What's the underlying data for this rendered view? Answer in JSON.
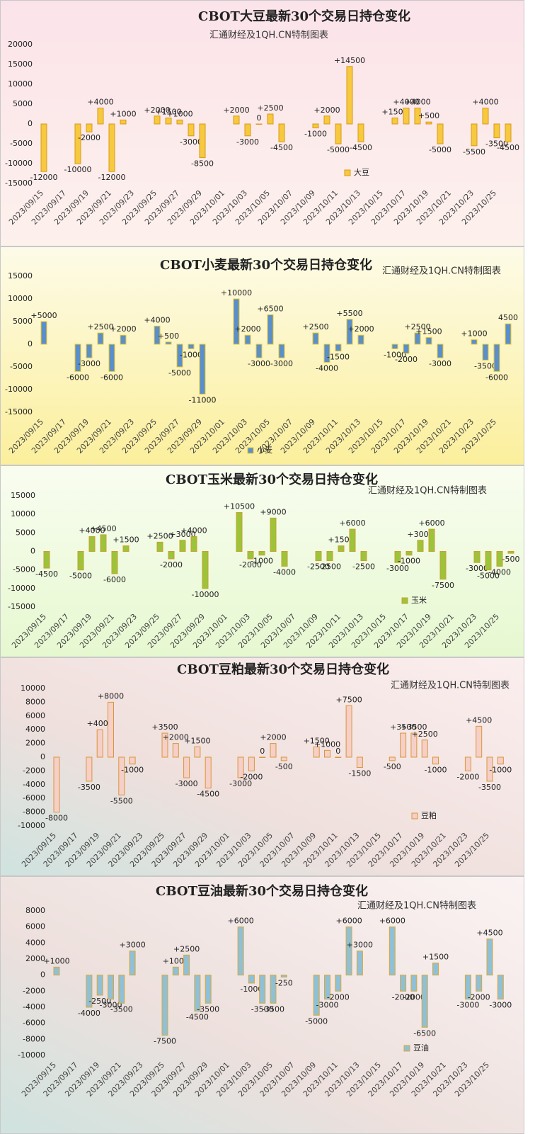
{
  "chart_data": [
    {
      "type": "bar",
      "title": "CBOT大豆最新30个交易日持仓变化",
      "subtitle": "汇通财经及1QH.CN特制图表",
      "categories": [
        "2023/09/15",
        null,
        "2023/09/17",
        null,
        "2023/09/19",
        null,
        "2023/09/21",
        null,
        "2023/09/23",
        null,
        "2023/09/25",
        null,
        "2023/09/27",
        null,
        "2023/09/29",
        null,
        "2023/10/01",
        null,
        "2023/10/03",
        null,
        "2023/10/05",
        null,
        "2023/10/07",
        null,
        "2023/10/09",
        null,
        "2023/10/11",
        null,
        "2023/10/13",
        null,
        "2023/10/15",
        null,
        "2023/10/17",
        null,
        "2023/10/19",
        null,
        "2023/10/21",
        null,
        "2023/10/23",
        null,
        "2023/10/25",
        null
      ],
      "series": [
        {
          "name": "大豆",
          "color": "#f6c93e",
          "edge_color": "#d99a1a",
          "values": [
            -12000,
            null,
            null,
            -10000,
            -2000,
            4000,
            -12000,
            1000,
            null,
            null,
            2000,
            1500,
            1000,
            -3000,
            -8500,
            null,
            null,
            2000,
            -3000,
            0,
            2500,
            -4500,
            null,
            null,
            -1000,
            2000,
            -5000,
            14500,
            -4500,
            null,
            null,
            1500,
            4000,
            4000,
            500,
            -5000,
            null,
            null,
            -5500,
            4000,
            -3500,
            -4500
          ],
          "value_labels": [
            "-12000",
            null,
            null,
            "-10000",
            "-2000",
            "+4000",
            "-12000",
            "+1000",
            null,
            null,
            "+2000",
            "+1500",
            "+1000",
            "-3000",
            "-8500",
            null,
            null,
            "+2000",
            "-3000",
            "0",
            "+2500",
            "-4500",
            null,
            null,
            "-1000",
            "+2000",
            "-5000",
            "+14500",
            "-4500",
            null,
            null,
            "+1500",
            "+4000",
            "+4000",
            "+500",
            "-5000",
            null,
            null,
            "-5500",
            "+4000",
            "-3500",
            "-4500"
          ]
        }
      ],
      "ylim": [
        -15000,
        20000
      ],
      "yticks": [
        -15000,
        -10000,
        -5000,
        0,
        5000,
        10000,
        15000,
        20000
      ],
      "grid": false
    },
    {
      "type": "bar",
      "title": "CBOT小麦最新30个交易日持仓变化",
      "subtitle": "汇通财经及1QH.CN特制图表",
      "categories": [
        "2023/09/15",
        null,
        "2023/09/17",
        null,
        "2023/09/19",
        null,
        "2023/09/21",
        null,
        "2023/09/23",
        null,
        "2023/09/25",
        null,
        "2023/09/27",
        null,
        "2023/09/29",
        null,
        "2023/10/01",
        null,
        "2023/10/03",
        null,
        "2023/10/05",
        null,
        "2023/10/07",
        null,
        "2023/10/09",
        null,
        "2023/10/11",
        null,
        "2023/10/13",
        null,
        "2023/10/15",
        null,
        "2023/10/17",
        null,
        "2023/10/19",
        null,
        "2023/10/21",
        null,
        "2023/10/23",
        null,
        "2023/10/25",
        null
      ],
      "series": [
        {
          "name": "小麦",
          "color": "#5b8fc9",
          "edge_color": "#e8c832",
          "values": [
            5000,
            null,
            null,
            -6000,
            -3000,
            2500,
            -6000,
            2000,
            null,
            null,
            4000,
            500,
            -5000,
            -1000,
            -11000,
            null,
            null,
            10000,
            2000,
            -3000,
            6500,
            -3000,
            null,
            null,
            2500,
            -4000,
            -1500,
            5500,
            2000,
            null,
            null,
            -1000,
            -2000,
            2500,
            1500,
            -3000,
            null,
            null,
            1000,
            -3500,
            -6000,
            4500
          ],
          "value_labels": [
            "+5000",
            null,
            null,
            "-6000",
            "-3000",
            "+2500",
            "-6000",
            "+2000",
            null,
            null,
            "+4000",
            "+500",
            "-5000",
            "-1000",
            "-11000",
            null,
            null,
            "+10000",
            "+2000",
            "-3000",
            "+6500",
            "-3000",
            null,
            null,
            "+2500",
            "-4000",
            "-1500",
            "+5500",
            "+2000",
            null,
            null,
            "-1000",
            "-2000",
            "+2500",
            "+1500",
            "-3000",
            null,
            null,
            "+1000",
            "-3500",
            "-6000",
            "4500"
          ]
        }
      ],
      "ylim": [
        -15000,
        15000
      ],
      "yticks": [
        -15000,
        -10000,
        -5000,
        0,
        5000,
        10000,
        15000
      ],
      "grid": false
    },
    {
      "type": "bar",
      "title": "CBOT玉米最新30个交易日持仓变化",
      "subtitle": "汇通财经及1QH.CN特制图表",
      "categories": [
        "2023/09/15",
        null,
        "2023/09/17",
        null,
        "2023/09/19",
        null,
        "2023/09/21",
        null,
        "2023/09/23",
        null,
        "2023/09/25",
        null,
        "2023/09/27",
        null,
        "2023/09/29",
        null,
        "2023/10/01",
        null,
        "2023/10/03",
        null,
        "2023/10/05",
        null,
        "2023/10/07",
        null,
        "2023/10/09",
        null,
        "2023/10/11",
        null,
        "2023/10/13",
        null,
        "2023/10/15",
        null,
        "2023/10/17",
        null,
        "2023/10/19",
        null,
        "2023/10/21",
        null,
        "2023/10/23",
        null,
        "2023/10/25",
        null
      ],
      "series": [
        {
          "name": "玉米",
          "color": "#9cc43a",
          "edge_color": "#c9a030",
          "values": [
            -4500,
            null,
            null,
            -5000,
            4000,
            4500,
            -6000,
            1500,
            null,
            null,
            2500,
            -2000,
            3000,
            4000,
            -10000,
            null,
            null,
            10500,
            -2000,
            -1000,
            9000,
            -4000,
            null,
            null,
            -2500,
            -2500,
            1500,
            6000,
            -2500,
            null,
            null,
            -3000,
            -1000,
            3000,
            6000,
            -7500,
            null,
            null,
            -3000,
            -5000,
            -4000,
            -500
          ],
          "value_labels": [
            "-4500",
            null,
            null,
            "-5000",
            "+4000",
            "+4500",
            "-6000",
            "+1500",
            null,
            null,
            "+2500",
            "-2000",
            "+3000",
            "+4000",
            "-10000",
            null,
            null,
            "+10500",
            "-2000",
            "-1000",
            "+9000",
            "-4000",
            null,
            null,
            "-2500",
            "-2500",
            "+1500",
            "+6000",
            "-2500",
            null,
            null,
            "-3000",
            "-1000",
            "+3000",
            "+6000",
            "-7500",
            null,
            null,
            "-3000",
            "-5000",
            "-4000",
            "-500"
          ]
        }
      ],
      "ylim": [
        -15000,
        15000
      ],
      "yticks": [
        -15000,
        -10000,
        -5000,
        0,
        5000,
        10000,
        15000
      ],
      "grid": false
    },
    {
      "type": "bar",
      "title": "CBOT豆粕最新30个交易日持仓变化",
      "subtitle": "汇通财经及1QH.CN特制图表",
      "categories": [
        "2023/09/15",
        null,
        "2023/09/17",
        null,
        "2023/09/19",
        null,
        "2023/09/21",
        null,
        "2023/09/23",
        null,
        "2023/09/25",
        null,
        "2023/09/27",
        null,
        "2023/09/29",
        null,
        "2023/10/01",
        null,
        "2023/10/03",
        null,
        "2023/10/05",
        null,
        "2023/10/07",
        null,
        "2023/10/09",
        null,
        "2023/10/11",
        null,
        "2023/10/13",
        null,
        "2023/10/15",
        null,
        "2023/10/17",
        null,
        "2023/10/19",
        null,
        "2023/10/21",
        null,
        "2023/10/23",
        null,
        "2023/10/25",
        null
      ],
      "series": [
        {
          "name": "豆粕",
          "color": "#f6cfc8",
          "edge_color": "#d9963a",
          "values": [
            -8000,
            null,
            null,
            -3500,
            4000,
            8000,
            -5500,
            -1000,
            null,
            null,
            3500,
            2000,
            -3000,
            1500,
            -4500,
            null,
            null,
            -3000,
            -2000,
            0,
            2000,
            -500,
            null,
            null,
            1500,
            1000,
            0,
            7500,
            -1500,
            null,
            null,
            -500,
            3500,
            3500,
            2500,
            -1000,
            null,
            null,
            -2000,
            4500,
            -3500,
            -1000
          ],
          "value_labels": [
            "-8000",
            null,
            null,
            "-3500",
            "+4000",
            "+8000",
            "-5500",
            "-1000",
            null,
            null,
            "+3500",
            "+2000",
            "-3000",
            "+1500",
            "-4500",
            null,
            null,
            "-3000",
            "-2000",
            "0",
            "+2000",
            "-500",
            null,
            null,
            "+1500",
            "+1000",
            "0",
            "+7500",
            "-1500",
            null,
            null,
            "-500",
            "+3500",
            "+3500",
            "+2500",
            "-1000",
            null,
            null,
            "-2000",
            "+4500",
            "-3500",
            "-1000"
          ]
        }
      ],
      "ylim": [
        -10000,
        10000
      ],
      "yticks": [
        -10000,
        -8000,
        -6000,
        -4000,
        -2000,
        0,
        2000,
        4000,
        6000,
        8000,
        10000
      ],
      "grid": false
    },
    {
      "type": "bar",
      "title": "CBOT豆油最新30个交易日持仓变化",
      "subtitle": "汇通财经及1QH.CN特制图表",
      "categories": [
        "2023/09/15",
        null,
        "2023/09/17",
        null,
        "2023/09/19",
        null,
        "2023/09/21",
        null,
        "2023/09/23",
        null,
        "2023/09/25",
        null,
        "2023/09/27",
        null,
        "2023/09/29",
        null,
        "2023/10/01",
        null,
        "2023/10/03",
        null,
        "2023/10/05",
        null,
        "2023/10/07",
        null,
        "2023/10/09",
        null,
        "2023/10/11",
        null,
        "2023/10/13",
        null,
        "2023/10/15",
        null,
        "2023/10/17",
        null,
        "2023/10/19",
        null,
        "2023/10/21",
        null,
        "2023/10/23",
        null,
        "2023/10/25",
        null
      ],
      "series": [
        {
          "name": "豆油",
          "color": "#8fc0d6",
          "edge_color": "#d9a83a",
          "values": [
            1000,
            null,
            null,
            -4000,
            -2500,
            -3000,
            -3500,
            3000,
            null,
            null,
            -7500,
            1000,
            2500,
            -4500,
            -3500,
            null,
            null,
            6000,
            -1000,
            -3500,
            -3500,
            -250,
            null,
            null,
            -5000,
            -3000,
            -2000,
            6000,
            3000,
            null,
            null,
            6000,
            -2000,
            -2000,
            -6500,
            1500,
            null,
            null,
            -3000,
            -2000,
            4500,
            -3000
          ],
          "value_labels": [
            "+1000",
            null,
            null,
            "-4000",
            "-2500",
            "-3000",
            "-3500",
            "+3000",
            null,
            null,
            "-7500",
            "+1000",
            "+2500",
            "-4500",
            "-3500",
            null,
            null,
            "+6000",
            "-1000",
            "-3500",
            "-3500",
            "-250",
            null,
            null,
            "-5000",
            "-3000",
            "-2000",
            "+6000",
            "+3000",
            null,
            null,
            "+6000",
            "-2000",
            "-2000",
            "-6500",
            "+1500",
            null,
            null,
            "-3000",
            "-2000",
            "+4500",
            "-3000"
          ]
        }
      ],
      "ylim": [
        -10000,
        8000
      ],
      "yticks": [
        -10000,
        -8000,
        -6000,
        -4000,
        -2000,
        0,
        2000,
        4000,
        6000,
        8000
      ],
      "grid": false
    }
  ]
}
